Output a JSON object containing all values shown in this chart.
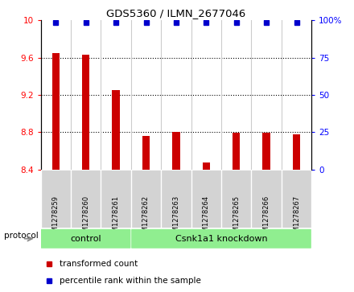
{
  "title": "GDS5360 / ILMN_2677046",
  "samples": [
    "GSM1278259",
    "GSM1278260",
    "GSM1278261",
    "GSM1278262",
    "GSM1278263",
    "GSM1278264",
    "GSM1278265",
    "GSM1278266",
    "GSM1278267"
  ],
  "bar_values": [
    9.65,
    9.63,
    9.25,
    8.76,
    8.8,
    8.47,
    8.79,
    8.79,
    8.78
  ],
  "percentile_values": [
    100,
    100,
    100,
    100,
    100,
    100,
    100,
    100,
    100
  ],
  "bar_color": "#cc0000",
  "dot_color": "#0000cc",
  "ylim_left": [
    8.4,
    10.0
  ],
  "ylim_right": [
    0,
    100
  ],
  "yticks_left": [
    8.4,
    8.8,
    9.2,
    9.6,
    10.0
  ],
  "yticks_right": [
    0,
    25,
    50,
    75,
    100
  ],
  "ytick_labels_left": [
    "8.4",
    "8.8",
    "9.2",
    "9.6",
    "10"
  ],
  "ytick_labels_right": [
    "0",
    "25",
    "50",
    "75",
    "100%"
  ],
  "groups": [
    {
      "label": "control",
      "start": 0,
      "end": 3,
      "color": "#90ee90"
    },
    {
      "label": "Csnk1a1 knockdown",
      "start": 3,
      "end": 9,
      "color": "#90ee90"
    }
  ],
  "protocol_label": "protocol",
  "grid_yticks": [
    8.8,
    9.2,
    9.6
  ],
  "bar_width": 0.25,
  "plot_bg_color": "#ffffff",
  "sample_box_color": "#d3d3d3",
  "legend_items": [
    {
      "color": "#cc0000",
      "label": "transformed count"
    },
    {
      "color": "#0000cc",
      "label": "percentile rank within the sample"
    }
  ]
}
